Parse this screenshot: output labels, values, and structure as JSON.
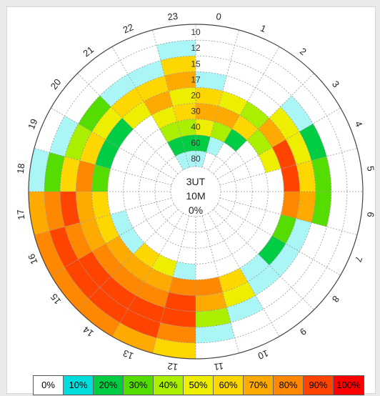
{
  "chart_data": {
    "type": "heatmap",
    "projection": "polar",
    "center_text": [
      "3UT",
      "10M",
      "0%"
    ],
    "hours": [
      "0",
      "1",
      "2",
      "3",
      "4",
      "5",
      "6",
      "7",
      "8",
      "9",
      "10",
      "11",
      "12",
      "13",
      "14",
      "15",
      "16",
      "17",
      "18",
      "19",
      "20",
      "21",
      "22",
      "23"
    ],
    "rings": [
      "10",
      "12",
      "15",
      "17",
      "20",
      "30",
      "40",
      "60",
      "80"
    ],
    "legend": [
      {
        "label": "0%",
        "color": "#ffffff"
      },
      {
        "label": "10%",
        "color": "#00dddd"
      },
      {
        "label": "20%",
        "color": "#00cc44"
      },
      {
        "label": "30%",
        "color": "#55dd00"
      },
      {
        "label": "40%",
        "color": "#aaee00"
      },
      {
        "label": "50%",
        "color": "#eeee00"
      },
      {
        "label": "60%",
        "color": "#ffd700"
      },
      {
        "label": "70%",
        "color": "#ffaa00"
      },
      {
        "label": "80%",
        "color": "#ff8800"
      },
      {
        "label": "90%",
        "color": "#ff4400"
      },
      {
        "label": "100%",
        "color": "#ff0000"
      }
    ],
    "light_cyan": "#aaf5f5",
    "cells": {
      "0": [
        0,
        0,
        0,
        1,
        6,
        7,
        5,
        2,
        1
      ],
      "1": [
        0,
        0,
        0,
        0,
        5,
        7,
        4,
        1,
        0
      ],
      "2": [
        0,
        0,
        0,
        0,
        4,
        6,
        2,
        0,
        0
      ],
      "3": [
        0,
        0,
        1,
        5,
        7,
        4,
        0,
        0,
        0
      ],
      "4": [
        0,
        0,
        2,
        5,
        9,
        5,
        0,
        0,
        0
      ],
      "5": [
        0,
        0,
        3,
        6,
        9,
        0,
        0,
        0,
        0
      ],
      "6": [
        0,
        0,
        3,
        7,
        8,
        0,
        0,
        0,
        0
      ],
      "7": [
        0,
        0,
        0,
        1,
        3,
        0,
        0,
        0,
        0
      ],
      "8": [
        0,
        0,
        0,
        1,
        2,
        0,
        0,
        0,
        0
      ],
      "9": [
        0,
        0,
        0,
        1,
        1,
        0,
        0,
        0,
        0
      ],
      "10": [
        0,
        0,
        1,
        5,
        6,
        0,
        0,
        0,
        0
      ],
      "11": [
        0,
        1,
        4,
        7,
        8,
        0,
        0,
        0,
        0
      ],
      "12": [
        6,
        8,
        9,
        9,
        8,
        1,
        0,
        0,
        0
      ],
      "13": [
        7,
        9,
        9,
        8,
        7,
        5,
        0,
        0,
        0
      ],
      "14": [
        8,
        9,
        9,
        8,
        7,
        6,
        0,
        0,
        0
      ],
      "15": [
        8,
        9,
        9,
        8,
        7,
        1,
        0,
        0,
        0
      ],
      "16": [
        8,
        9,
        8,
        7,
        6,
        1,
        0,
        0,
        0
      ],
      "17": [
        7,
        8,
        9,
        7,
        6,
        0,
        0,
        0,
        0
      ],
      "18": [
        1,
        3,
        6,
        8,
        3,
        0,
        0,
        0,
        0
      ],
      "19": [
        0,
        1,
        4,
        6,
        2,
        0,
        0,
        0,
        0
      ],
      "20": [
        0,
        0,
        3,
        5,
        2,
        0,
        0,
        0,
        0
      ],
      "21": [
        0,
        0,
        1,
        6,
        5,
        0,
        0,
        0,
        0
      ],
      "22": [
        0,
        0,
        1,
        6,
        7,
        5,
        4,
        2,
        1
      ],
      "23": [
        0,
        1,
        6,
        7,
        5,
        6,
        4,
        2,
        1
      ]
    }
  }
}
